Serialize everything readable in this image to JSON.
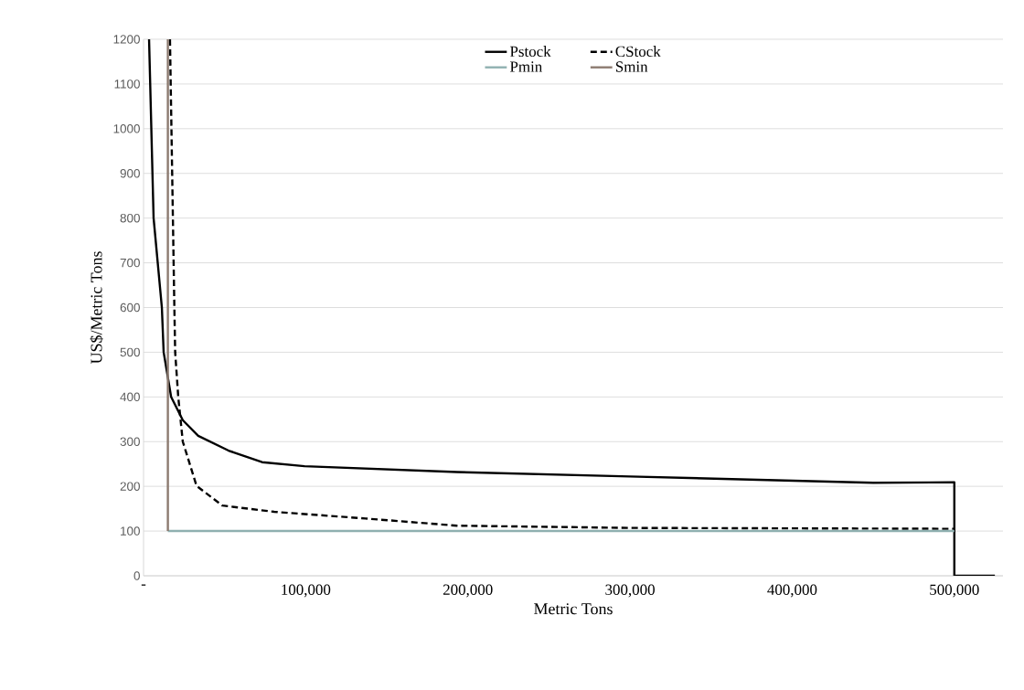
{
  "chart_data": {
    "type": "line",
    "xlabel": "Metric Tons",
    "ylabel": "US$/Metric Tons",
    "xlim": [
      0,
      530000
    ],
    "ylim": [
      0,
      1200
    ],
    "xticks": [
      {
        "value": 0,
        "label": "-"
      },
      {
        "value": 100000,
        "label": "100,000"
      },
      {
        "value": 200000,
        "label": "200,000"
      },
      {
        "value": 300000,
        "label": "300,000"
      },
      {
        "value": 400000,
        "label": "400,000"
      },
      {
        "value": 500000,
        "label": "500,000"
      }
    ],
    "yticks": [
      0,
      100,
      200,
      300,
      400,
      500,
      600,
      700,
      800,
      900,
      1000,
      1100,
      1200
    ],
    "grid": "y",
    "legend": "top",
    "marker": "none",
    "series": [
      {
        "name": "Pstock",
        "color": "#000000",
        "line_style": "solid",
        "x": [
          3400,
          6200,
          11300,
          12400,
          17000,
          24200,
          33700,
          52400,
          73100,
          99300,
          193300,
          300000,
          450000,
          500000,
          500000,
          525000
        ],
        "values": [
          1200,
          800,
          600,
          500,
          400,
          348,
          313,
          280,
          254,
          245,
          232,
          222,
          208,
          209,
          0,
          0
        ]
      },
      {
        "name": "CStock",
        "color": "#000000",
        "line_style": "dashed",
        "x": [
          16300,
          19000,
          19500,
          21400,
          24200,
          32700,
          48600,
          80600,
          137000,
          193300,
          300000,
          500000
        ],
        "values": [
          1200,
          600,
          500,
          400,
          300,
          201,
          157,
          143,
          128,
          112,
          107,
          105
        ]
      },
      {
        "name": "Pmin",
        "color": "#8fb0b0",
        "line_style": "solid",
        "x": [
          15000,
          500000
        ],
        "values": [
          100,
          100
        ]
      },
      {
        "name": "Smin",
        "color": "#8c7b70",
        "line_style": "solid",
        "x": [
          15000,
          15000
        ],
        "values": [
          100,
          1200
        ]
      }
    ]
  }
}
